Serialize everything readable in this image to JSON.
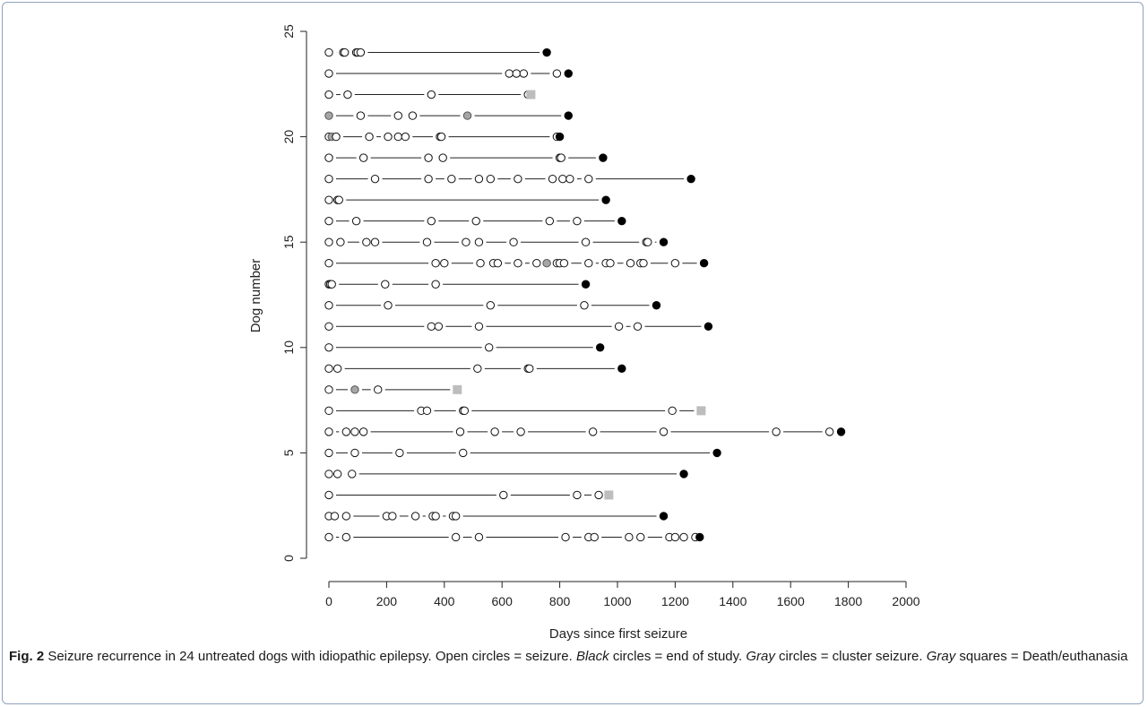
{
  "chart_data": {
    "type": "scatter",
    "xlabel": "Days since first seizure",
    "ylabel": "Dog number",
    "xlim": [
      0,
      2000
    ],
    "ylim": [
      0,
      25
    ],
    "x_ticks": [
      0,
      200,
      400,
      600,
      800,
      1000,
      1200,
      1400,
      1600,
      1800,
      2000
    ],
    "y_ticks": [
      0,
      5,
      10,
      15,
      20,
      25
    ],
    "grid": false,
    "legend": "none",
    "colors": {
      "seizure_fill": "#ffffff",
      "end_of_study": "#000000",
      "cluster": "#a6a6a6",
      "death": "#bdbdbd"
    },
    "dogs": [
      {
        "dog": 1,
        "seizures": [
          0,
          60,
          440,
          520,
          820,
          900,
          920,
          1040,
          1080,
          1180,
          1200,
          1230,
          1270
        ],
        "cluster": [],
        "end": 1285,
        "death": null
      },
      {
        "dog": 2,
        "seizures": [
          0,
          20,
          60,
          200,
          220,
          300,
          360,
          370,
          430,
          440
        ],
        "cluster": [],
        "end": 1160,
        "death": null
      },
      {
        "dog": 3,
        "seizures": [
          0,
          605,
          860,
          935
        ],
        "cluster": [],
        "end": null,
        "death": 970
      },
      {
        "dog": 4,
        "seizures": [
          0,
          30,
          80
        ],
        "cluster": [],
        "end": 1230,
        "death": null
      },
      {
        "dog": 5,
        "seizures": [
          0,
          90,
          245,
          465
        ],
        "cluster": [],
        "end": 1345,
        "death": null
      },
      {
        "dog": 6,
        "seizures": [
          0,
          60,
          90,
          120,
          455,
          575,
          665,
          915,
          1160,
          1550,
          1735
        ],
        "cluster": [],
        "end": 1775,
        "death": null
      },
      {
        "dog": 7,
        "seizures": [
          0,
          320,
          340,
          465,
          470,
          1190
        ],
        "cluster": [],
        "end": null,
        "death": 1290
      },
      {
        "dog": 8,
        "seizures": [
          0,
          170
        ],
        "cluster": [
          90
        ],
        "end": null,
        "death": 445
      },
      {
        "dog": 9,
        "seizures": [
          0,
          30,
          515,
          690,
          695
        ],
        "cluster": [],
        "end": 1015,
        "death": null
      },
      {
        "dog": 10,
        "seizures": [
          0,
          555
        ],
        "cluster": [],
        "end": 940,
        "death": null
      },
      {
        "dog": 11,
        "seizures": [
          0,
          355,
          380,
          520,
          1005,
          1070
        ],
        "cluster": [],
        "end": 1315,
        "death": null
      },
      {
        "dog": 12,
        "seizures": [
          0,
          205,
          560,
          885
        ],
        "cluster": [],
        "end": 1135,
        "death": null
      },
      {
        "dog": 13,
        "seizures": [
          0,
          5,
          10,
          195,
          370
        ],
        "cluster": [],
        "end": 890,
        "death": null
      },
      {
        "dog": 14,
        "seizures": [
          0,
          370,
          400,
          525,
          570,
          585,
          655,
          720,
          790,
          800,
          815,
          900,
          960,
          975,
          1045,
          1080,
          1090,
          1200
        ],
        "cluster": [
          755
        ],
        "end": 1300,
        "death": null
      },
      {
        "dog": 15,
        "seizures": [
          0,
          40,
          130,
          160,
          340,
          475,
          520,
          640,
          890,
          1100,
          1105
        ],
        "cluster": [],
        "end": 1160,
        "death": null
      },
      {
        "dog": 16,
        "seizures": [
          0,
          95,
          355,
          510,
          765,
          860
        ],
        "cluster": [],
        "end": 1015,
        "death": null
      },
      {
        "dog": 17,
        "seizures": [
          0,
          30,
          35
        ],
        "cluster": [],
        "end": 960,
        "death": null
      },
      {
        "dog": 18,
        "seizures": [
          0,
          160,
          345,
          425,
          520,
          560,
          655,
          775,
          810,
          835,
          900
        ],
        "cluster": [],
        "end": 1255,
        "death": null
      },
      {
        "dog": 19,
        "seizures": [
          0,
          120,
          345,
          395,
          800,
          805
        ],
        "cluster": [],
        "end": 950,
        "death": null
      },
      {
        "dog": 20,
        "seizures": [
          0,
          25,
          140,
          205,
          240,
          265,
          385,
          390,
          790
        ],
        "cluster": [
          10
        ],
        "end": 800,
        "death": null
      },
      {
        "dog": 21,
        "seizures": [
          110,
          240,
          290
        ],
        "cluster": [
          0,
          480
        ],
        "end": 830,
        "death": null
      },
      {
        "dog": 22,
        "seizures": [
          0,
          65,
          355,
          690
        ],
        "cluster": [],
        "end": null,
        "death": 700
      },
      {
        "dog": 23,
        "seizures": [
          0,
          625,
          650,
          675,
          790
        ],
        "cluster": [],
        "end": 830,
        "death": null
      },
      {
        "dog": 24,
        "seizures": [
          0,
          50,
          55,
          95,
          100,
          110
        ],
        "cluster": [],
        "end": 755,
        "death": null
      }
    ]
  },
  "caption": {
    "fig_label": "Fig. 2",
    "text1": " Seizure recurrence in 24 untreated dogs with idiopathic epilepsy. Open circles = seizure. ",
    "black": "Black",
    "text2": " circles = end of study. ",
    "gray1": "Gray",
    "text3": " circles = cluster seizure. ",
    "gray2": "Gray",
    "text4": " squares = Death/euthanasia"
  }
}
